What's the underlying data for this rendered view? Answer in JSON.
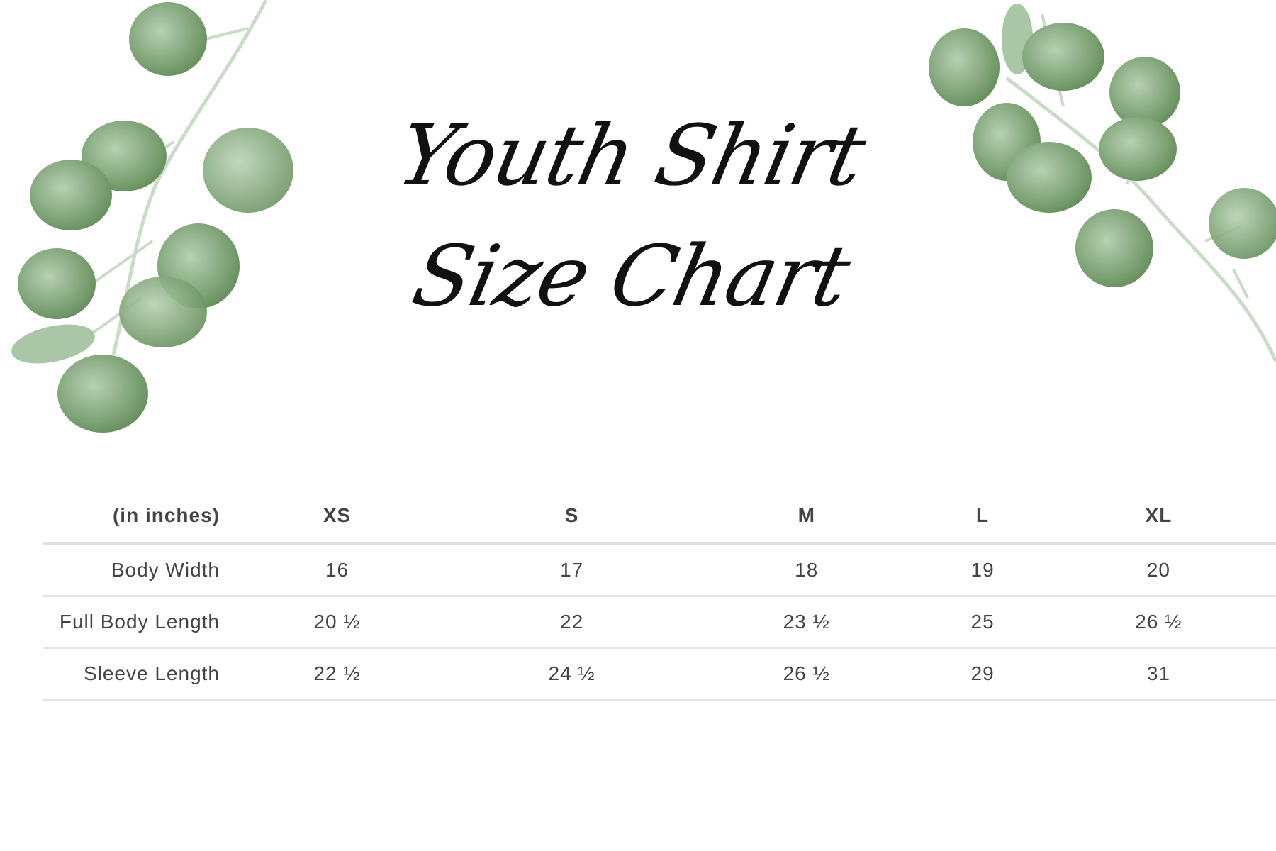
{
  "title": {
    "line1": "Youth Shirt",
    "line2": "Size Chart"
  },
  "colors": {
    "leaf_dark": "#5f8a55",
    "leaf_light": "#a9c7a6",
    "stem": "#c9dcc6",
    "text": "#444444",
    "rule": "#e0e0e2"
  },
  "table": {
    "unit_label": "(in inches)",
    "sizes": [
      "XS",
      "S",
      "M",
      "L",
      "XL"
    ],
    "rows": [
      {
        "label": "Body Width",
        "values": [
          "16",
          "17",
          "18",
          "19",
          "20"
        ]
      },
      {
        "label": "Full Body Length",
        "values": [
          "20 ½",
          "22",
          "23 ½",
          "25",
          "26 ½"
        ]
      },
      {
        "label": "Sleeve Length",
        "values": [
          "22 ½",
          "24 ½",
          "26 ½",
          "29",
          "31"
        ]
      }
    ]
  }
}
